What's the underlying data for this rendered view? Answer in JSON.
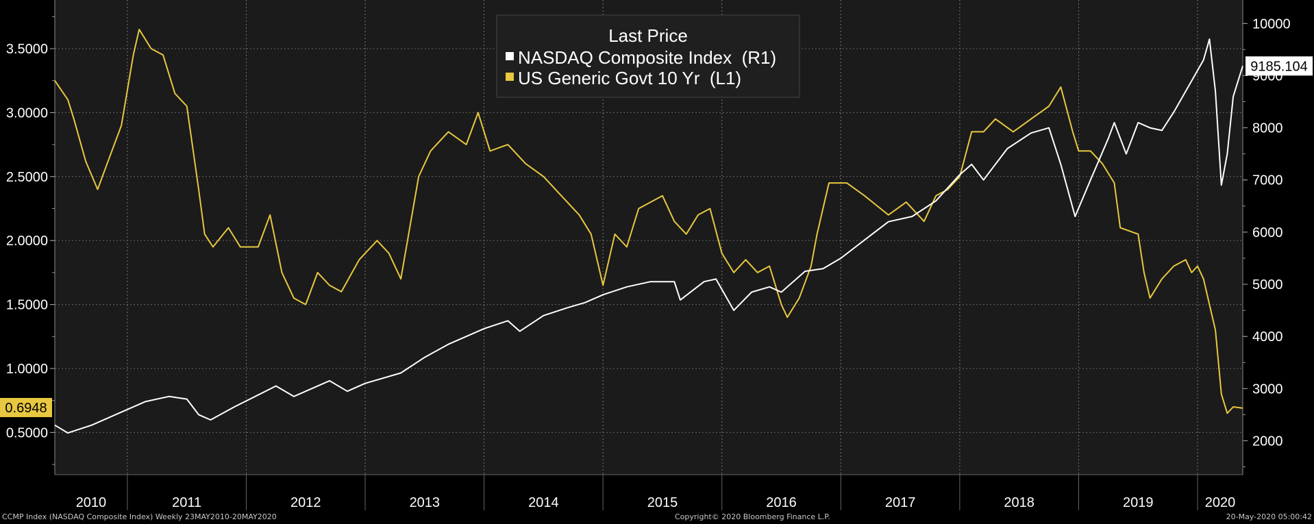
{
  "chart_data": {
    "type": "line",
    "title": "Last Price",
    "x_range": [
      2010.39,
      2020.38
    ],
    "x_labels": [
      "2010",
      "2011",
      "2012",
      "2013",
      "2014",
      "2015",
      "2016",
      "2017",
      "2018",
      "2019",
      "2020"
    ],
    "left_axis": {
      "range": [
        0.17,
        3.88
      ],
      "ticks": [
        "0.5000",
        "1.0000",
        "1.5000",
        "2.0000",
        "2.5000",
        "3.0000",
        "3.5000"
      ]
    },
    "right_axis": {
      "range": [
        1350,
        10450
      ],
      "ticks": [
        "2000",
        "3000",
        "4000",
        "5000",
        "6000",
        "7000",
        "8000",
        "9000",
        "10000"
      ]
    },
    "series": [
      {
        "name": "NASDAQ Composite Index  (R1)",
        "color": "#ffffff",
        "axis": "right",
        "last_value": "9185.104",
        "points": [
          [
            2010.39,
            2300
          ],
          [
            2010.5,
            2150
          ],
          [
            2010.7,
            2300
          ],
          [
            2010.9,
            2500
          ],
          [
            2011.15,
            2750
          ],
          [
            2011.35,
            2850
          ],
          [
            2011.5,
            2800
          ],
          [
            2011.6,
            2500
          ],
          [
            2011.7,
            2400
          ],
          [
            2011.9,
            2650
          ],
          [
            2012.25,
            3050
          ],
          [
            2012.4,
            2850
          ],
          [
            2012.5,
            2950
          ],
          [
            2012.7,
            3150
          ],
          [
            2012.85,
            2950
          ],
          [
            2013.0,
            3100
          ],
          [
            2013.3,
            3300
          ],
          [
            2013.5,
            3600
          ],
          [
            2013.7,
            3850
          ],
          [
            2014.0,
            4150
          ],
          [
            2014.2,
            4300
          ],
          [
            2014.3,
            4100
          ],
          [
            2014.5,
            4400
          ],
          [
            2014.7,
            4550
          ],
          [
            2014.85,
            4650
          ],
          [
            2015.0,
            4800
          ],
          [
            2015.2,
            4950
          ],
          [
            2015.4,
            5050
          ],
          [
            2015.6,
            5050
          ],
          [
            2015.65,
            4700
          ],
          [
            2015.85,
            5050
          ],
          [
            2015.95,
            5100
          ],
          [
            2016.1,
            4500
          ],
          [
            2016.25,
            4850
          ],
          [
            2016.4,
            4950
          ],
          [
            2016.5,
            4850
          ],
          [
            2016.7,
            5250
          ],
          [
            2016.85,
            5300
          ],
          [
            2017.0,
            5500
          ],
          [
            2017.2,
            5850
          ],
          [
            2017.4,
            6200
          ],
          [
            2017.6,
            6300
          ],
          [
            2017.8,
            6600
          ],
          [
            2018.0,
            7100
          ],
          [
            2018.1,
            7300
          ],
          [
            2018.2,
            7000
          ],
          [
            2018.4,
            7600
          ],
          [
            2018.6,
            7900
          ],
          [
            2018.75,
            8000
          ],
          [
            2018.85,
            7300
          ],
          [
            2018.97,
            6300
          ],
          [
            2019.1,
            7000
          ],
          [
            2019.25,
            7800
          ],
          [
            2019.3,
            8100
          ],
          [
            2019.4,
            7500
          ],
          [
            2019.5,
            8100
          ],
          [
            2019.6,
            8000
          ],
          [
            2019.7,
            7950
          ],
          [
            2019.8,
            8300
          ],
          [
            2019.95,
            8900
          ],
          [
            2020.05,
            9300
          ],
          [
            2020.1,
            9700
          ],
          [
            2020.15,
            8700
          ],
          [
            2020.2,
            6900
          ],
          [
            2020.25,
            7500
          ],
          [
            2020.3,
            8600
          ],
          [
            2020.38,
            9185
          ]
        ]
      },
      {
        "name": "US Generic Govt 10 Yr  (L1)",
        "color": "#e8c840",
        "axis": "left",
        "last_value": "0.6948",
        "points": [
          [
            2010.39,
            3.25
          ],
          [
            2010.5,
            3.1
          ],
          [
            2010.55,
            2.95
          ],
          [
            2010.65,
            2.62
          ],
          [
            2010.75,
            2.4
          ],
          [
            2010.85,
            2.65
          ],
          [
            2010.95,
            2.9
          ],
          [
            2011.05,
            3.45
          ],
          [
            2011.1,
            3.65
          ],
          [
            2011.2,
            3.5
          ],
          [
            2011.3,
            3.45
          ],
          [
            2011.4,
            3.15
          ],
          [
            2011.5,
            3.05
          ],
          [
            2011.6,
            2.4
          ],
          [
            2011.65,
            2.05
          ],
          [
            2011.72,
            1.95
          ],
          [
            2011.85,
            2.1
          ],
          [
            2011.95,
            1.95
          ],
          [
            2012.1,
            1.95
          ],
          [
            2012.2,
            2.2
          ],
          [
            2012.3,
            1.75
          ],
          [
            2012.4,
            1.55
          ],
          [
            2012.5,
            1.5
          ],
          [
            2012.6,
            1.75
          ],
          [
            2012.7,
            1.65
          ],
          [
            2012.8,
            1.6
          ],
          [
            2012.95,
            1.85
          ],
          [
            2013.1,
            2.0
          ],
          [
            2013.2,
            1.9
          ],
          [
            2013.3,
            1.7
          ],
          [
            2013.45,
            2.5
          ],
          [
            2013.55,
            2.7
          ],
          [
            2013.7,
            2.85
          ],
          [
            2013.85,
            2.75
          ],
          [
            2013.95,
            3.0
          ],
          [
            2014.05,
            2.7
          ],
          [
            2014.2,
            2.75
          ],
          [
            2014.35,
            2.6
          ],
          [
            2014.5,
            2.5
          ],
          [
            2014.65,
            2.35
          ],
          [
            2014.8,
            2.2
          ],
          [
            2014.9,
            2.05
          ],
          [
            2015.0,
            1.65
          ],
          [
            2015.1,
            2.05
          ],
          [
            2015.2,
            1.95
          ],
          [
            2015.3,
            2.25
          ],
          [
            2015.4,
            2.3
          ],
          [
            2015.5,
            2.35
          ],
          [
            2015.6,
            2.15
          ],
          [
            2015.7,
            2.05
          ],
          [
            2015.8,
            2.2
          ],
          [
            2015.9,
            2.25
          ],
          [
            2016.0,
            1.9
          ],
          [
            2016.1,
            1.75
          ],
          [
            2016.2,
            1.85
          ],
          [
            2016.3,
            1.75
          ],
          [
            2016.4,
            1.8
          ],
          [
            2016.5,
            1.5
          ],
          [
            2016.55,
            1.4
          ],
          [
            2016.65,
            1.55
          ],
          [
            2016.75,
            1.8
          ],
          [
            2016.8,
            2.05
          ],
          [
            2016.9,
            2.45
          ],
          [
            2017.05,
            2.45
          ],
          [
            2017.2,
            2.35
          ],
          [
            2017.4,
            2.2
          ],
          [
            2017.55,
            2.3
          ],
          [
            2017.7,
            2.15
          ],
          [
            2017.8,
            2.35
          ],
          [
            2017.9,
            2.4
          ],
          [
            2018.0,
            2.5
          ],
          [
            2018.1,
            2.85
          ],
          [
            2018.2,
            2.85
          ],
          [
            2018.3,
            2.95
          ],
          [
            2018.45,
            2.85
          ],
          [
            2018.6,
            2.95
          ],
          [
            2018.75,
            3.05
          ],
          [
            2018.85,
            3.2
          ],
          [
            2018.95,
            2.85
          ],
          [
            2019.0,
            2.7
          ],
          [
            2019.1,
            2.7
          ],
          [
            2019.2,
            2.6
          ],
          [
            2019.3,
            2.45
          ],
          [
            2019.35,
            2.1
          ],
          [
            2019.5,
            2.05
          ],
          [
            2019.55,
            1.75
          ],
          [
            2019.6,
            1.55
          ],
          [
            2019.7,
            1.7
          ],
          [
            2019.8,
            1.8
          ],
          [
            2019.9,
            1.85
          ],
          [
            2019.95,
            1.75
          ],
          [
            2020.0,
            1.8
          ],
          [
            2020.05,
            1.7
          ],
          [
            2020.1,
            1.5
          ],
          [
            2020.15,
            1.3
          ],
          [
            2020.2,
            0.8
          ],
          [
            2020.25,
            0.65
          ],
          [
            2020.3,
            0.7
          ],
          [
            2020.38,
            0.69
          ]
        ]
      }
    ]
  },
  "footer": {
    "left": "CCMP Index (NASDAQ Composite Index)  Weekly 23MAY2010-20MAY2020",
    "center": "Copyright© 2020 Bloomberg Finance L.P.",
    "right": "20-May-2020 05:00:42"
  }
}
